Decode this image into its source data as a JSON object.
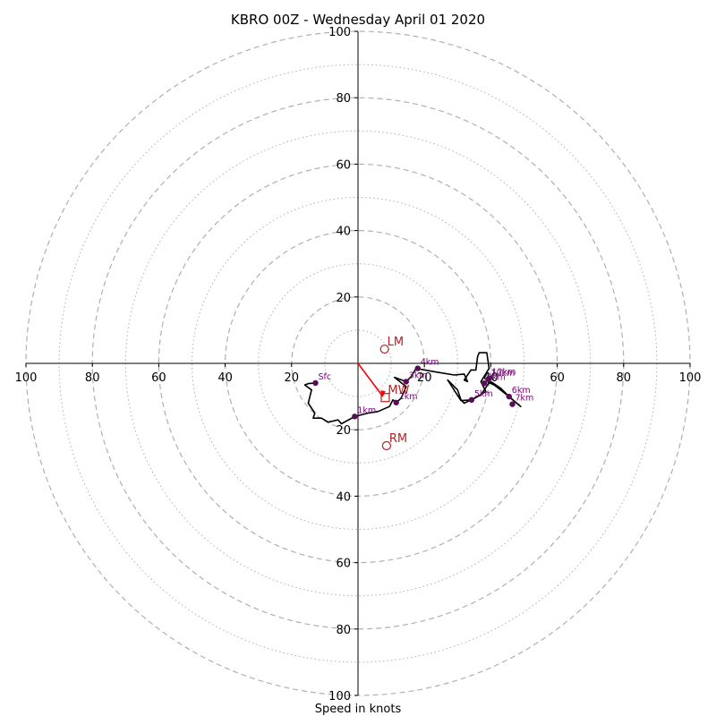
{
  "chart_data": {
    "type": "scatter",
    "title": "KBRO 00Z - Wednesday April 01 2020",
    "xlabel": "Speed in knots",
    "ylabel": "",
    "xlim": [
      -100,
      100
    ],
    "ylim": [
      -100,
      100
    ],
    "major_rings": [
      20,
      40,
      60,
      80,
      100
    ],
    "minor_rings": [
      10,
      30,
      50,
      70,
      90
    ],
    "x_ticks": [
      {
        "v": -100,
        "label": "100"
      },
      {
        "v": -80,
        "label": "80"
      },
      {
        "v": -60,
        "label": "60"
      },
      {
        "v": -40,
        "label": "40"
      },
      {
        "v": -20,
        "label": "20"
      },
      {
        "v": 20,
        "label": "20"
      },
      {
        "v": 40,
        "label": "40"
      },
      {
        "v": 60,
        "label": "60"
      },
      {
        "v": 80,
        "label": "80"
      },
      {
        "v": 100,
        "label": "100"
      }
    ],
    "y_ticks": [
      {
        "v": 100,
        "label": "100"
      },
      {
        "v": 80,
        "label": "80"
      },
      {
        "v": 60,
        "label": "60"
      },
      {
        "v": 40,
        "label": "40"
      },
      {
        "v": 20,
        "label": "20"
      },
      {
        "v": -20,
        "label": "20"
      },
      {
        "v": -40,
        "label": "40"
      },
      {
        "v": -60,
        "label": "60"
      },
      {
        "v": -80,
        "label": "80"
      },
      {
        "v": -100,
        "label": "100"
      }
    ],
    "hodograph_line": [
      [
        -12.8,
        -5.9
      ],
      [
        -15,
        -6.1
      ],
      [
        -16,
        -6.5
      ],
      [
        -14,
        -8
      ],
      [
        -15,
        -12
      ],
      [
        -13,
        -15
      ],
      [
        -13.5,
        -16.5
      ],
      [
        -11,
        -16.5
      ],
      [
        -9,
        -17.7
      ],
      [
        -6,
        -17
      ],
      [
        -5,
        -18.2
      ],
      [
        -1,
        -16
      ],
      [
        3,
        -15
      ],
      [
        6,
        -14.5
      ],
      [
        9.5,
        -13
      ],
      [
        10.5,
        -11
      ],
      [
        11.5,
        -11.8
      ],
      [
        13,
        -10.5
      ],
      [
        14.5,
        -7
      ],
      [
        12,
        -5
      ],
      [
        11,
        -4.2
      ],
      [
        14.5,
        -5.5
      ],
      [
        16,
        -4
      ],
      [
        17.5,
        -1.5
      ],
      [
        19,
        -1.8
      ],
      [
        23,
        -2.5
      ],
      [
        29,
        -3.5
      ],
      [
        32,
        -3.2
      ],
      [
        33,
        -5.5
      ],
      [
        32,
        -5
      ],
      [
        34,
        -2
      ],
      [
        35.5,
        -2
      ],
      [
        36,
        2
      ],
      [
        36.5,
        3.2
      ],
      [
        38.8,
        3.2
      ],
      [
        39.5,
        -1.5
      ],
      [
        37,
        -5.5
      ],
      [
        38.5,
        -8.5
      ],
      [
        36,
        -10
      ],
      [
        34,
        -11
      ],
      [
        32,
        -12
      ],
      [
        31,
        -11
      ],
      [
        30,
        -8
      ],
      [
        27,
        -5
      ],
      [
        31,
        -11.2
      ],
      [
        34.2,
        -11
      ],
      [
        37,
        -9.5
      ],
      [
        39.5,
        -5.8
      ],
      [
        41,
        -6.5
      ],
      [
        45.5,
        -10
      ],
      [
        49,
        -13
      ],
      [
        46,
        -10.5
      ],
      [
        43,
        -7.5
      ],
      [
        40,
        -5.5
      ],
      [
        39,
        -6
      ]
    ],
    "markers": [
      {
        "label": "Sfc",
        "x": -12.8,
        "y": -5.9
      },
      {
        "label": "1km",
        "x": -1,
        "y": -16
      },
      {
        "label": "2km",
        "x": 11.5,
        "y": -11.8
      },
      {
        "label": "3km",
        "x": 14.5,
        "y": -5.5
      },
      {
        "label": "4km",
        "x": 18,
        "y": -1.5
      },
      {
        "label": "5km",
        "x": 34.2,
        "y": -11
      },
      {
        "label": "6km",
        "x": 45.5,
        "y": -10
      },
      {
        "label": "7km",
        "x": 46.5,
        "y": -12.3
      },
      {
        "label": "9km",
        "x": 38,
        "y": -6
      },
      {
        "label": "12km",
        "x": 39.5,
        "y": -4.5
      },
      {
        "label": "10km",
        "x": 39.2,
        "y": -4.8
      }
    ],
    "storm_motion": [
      {
        "label": "LM",
        "x": 8,
        "y": 4.3,
        "marker": "circle"
      },
      {
        "label": "RM",
        "x": 8.6,
        "y": -24.8,
        "marker": "circle"
      },
      {
        "label": "MW",
        "x": 8.2,
        "y": -10.3,
        "marker": "square"
      }
    ],
    "shear_vector": {
      "from": [
        0,
        0
      ],
      "to": [
        7.5,
        -10
      ]
    },
    "colors": {
      "ring": "#b0b0b0",
      "axis": "#000000",
      "hodograph": "#000000",
      "marker": "#5a0c5a",
      "marker_label": "#800080",
      "storm_motion": "#b22222",
      "shear_vector": "#ff0000"
    },
    "grid": true
  }
}
